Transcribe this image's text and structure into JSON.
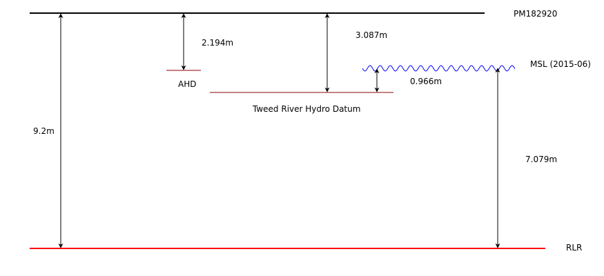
{
  "levels": {
    "pm": {
      "label": "PM182920",
      "color": "#000000"
    },
    "ahd": {
      "label": "AHD",
      "color": "#8b0000"
    },
    "msl": {
      "label": "MSL (2015-06)",
      "color": "#0000ff"
    },
    "tweed": {
      "label": "Tweed River Hydro Datum",
      "color": "#8b0000"
    },
    "rlr": {
      "label": "RLR",
      "color": "#ff0000"
    }
  },
  "measurements": {
    "pm_to_rlr": "9.2m",
    "pm_to_ahd": "2.194m",
    "pm_to_tweed": "3.087m",
    "msl_to_tweed": "0.966m",
    "msl_to_rlr": "7.079m"
  },
  "arrow_color": "#000000"
}
